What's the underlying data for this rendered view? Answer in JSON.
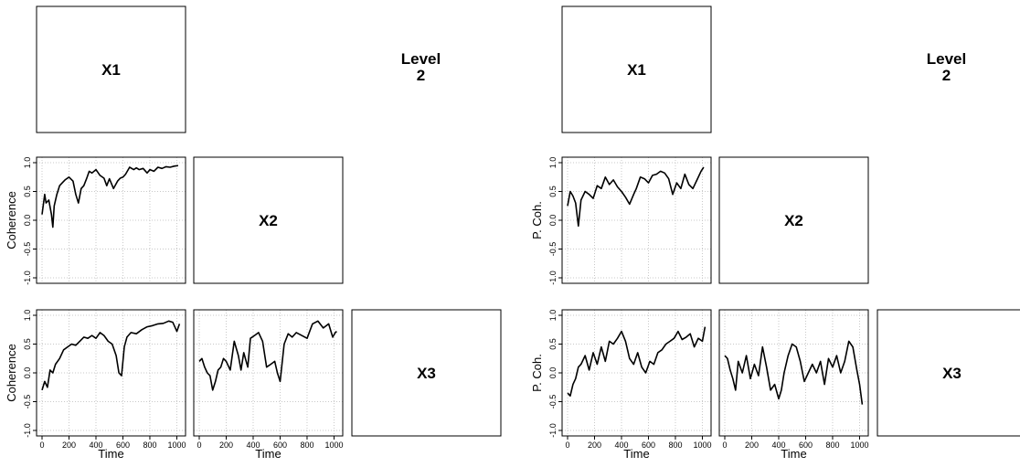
{
  "chart_data": [
    {
      "panel": "left",
      "type": "line",
      "diag_labels": [
        "X1",
        "X2",
        "X3"
      ],
      "level_label": [
        "Level",
        "2"
      ],
      "ylabel": "Coherence",
      "xlabel": "Time",
      "xlim": [
        0,
        1024
      ],
      "ylim": [
        -1,
        1
      ],
      "xticks": [
        "0",
        "200",
        "400",
        "600",
        "800",
        "1000"
      ],
      "yticks": [
        "-1.0",
        "-0.5",
        "0.0",
        "0.5",
        "1.0"
      ],
      "grid": true,
      "plots": [
        {
          "cell": "X2-X1",
          "x": [
            0,
            20,
            30,
            50,
            70,
            80,
            90,
            110,
            130,
            150,
            170,
            200,
            230,
            250,
            270,
            290,
            310,
            330,
            350,
            370,
            400,
            430,
            460,
            480,
            500,
            530,
            560,
            580,
            600,
            620,
            650,
            680,
            700,
            720,
            750,
            780,
            800,
            830,
            860,
            890,
            920,
            950,
            980,
            1010
          ],
          "y": [
            0.1,
            0.45,
            0.3,
            0.35,
            0.1,
            -0.12,
            0.25,
            0.45,
            0.6,
            0.65,
            0.7,
            0.75,
            0.68,
            0.45,
            0.3,
            0.55,
            0.6,
            0.72,
            0.85,
            0.82,
            0.88,
            0.78,
            0.73,
            0.6,
            0.72,
            0.55,
            0.68,
            0.73,
            0.75,
            0.8,
            0.92,
            0.88,
            0.91,
            0.88,
            0.9,
            0.82,
            0.88,
            0.85,
            0.92,
            0.9,
            0.93,
            0.92,
            0.94,
            0.95
          ]
        },
        {
          "cell": "X3-X1",
          "x": [
            0,
            20,
            40,
            60,
            80,
            100,
            130,
            160,
            190,
            220,
            250,
            280,
            310,
            340,
            370,
            400,
            430,
            460,
            490,
            520,
            550,
            570,
            590,
            610,
            630,
            660,
            700,
            740,
            780,
            820,
            860,
            900,
            940,
            970,
            1000,
            1020
          ],
          "y": [
            -0.3,
            -0.15,
            -0.25,
            0.05,
            0.0,
            0.15,
            0.25,
            0.4,
            0.45,
            0.5,
            0.48,
            0.55,
            0.62,
            0.6,
            0.65,
            0.6,
            0.7,
            0.65,
            0.55,
            0.5,
            0.3,
            0.0,
            -0.05,
            0.45,
            0.62,
            0.7,
            0.68,
            0.75,
            0.8,
            0.82,
            0.85,
            0.86,
            0.9,
            0.88,
            0.72,
            0.85
          ]
        },
        {
          "cell": "X3-X2",
          "x": [
            0,
            20,
            40,
            60,
            80,
            100,
            120,
            140,
            160,
            180,
            200,
            230,
            260,
            290,
            310,
            330,
            360,
            380,
            410,
            440,
            470,
            500,
            530,
            560,
            580,
            600,
            630,
            660,
            690,
            720,
            760,
            800,
            840,
            880,
            920,
            960,
            990,
            1010,
            1020
          ],
          "y": [
            0.2,
            0.25,
            0.1,
            0.0,
            -0.05,
            -0.3,
            -0.15,
            0.05,
            0.1,
            0.25,
            0.2,
            0.05,
            0.55,
            0.3,
            0.05,
            0.35,
            0.1,
            0.6,
            0.65,
            0.7,
            0.55,
            0.1,
            0.15,
            0.2,
            0.0,
            -0.15,
            0.5,
            0.68,
            0.62,
            0.7,
            0.65,
            0.6,
            0.85,
            0.9,
            0.78,
            0.85,
            0.62,
            0.7,
            0.72
          ]
        }
      ]
    },
    {
      "panel": "right",
      "type": "line",
      "diag_labels": [
        "X1",
        "X2",
        "X3"
      ],
      "level_label": [
        "Level",
        "2"
      ],
      "ylabel": "P. Coh.",
      "xlabel": "Time",
      "xlim": [
        0,
        1024
      ],
      "ylim": [
        -1,
        1
      ],
      "xticks": [
        "0",
        "200",
        "400",
        "600",
        "800",
        "1000"
      ],
      "yticks": [
        "-1.0",
        "-0.5",
        "0.0",
        "0.5",
        "1.0"
      ],
      "grid": true,
      "plots": [
        {
          "cell": "X2-X1",
          "x": [
            0,
            20,
            40,
            60,
            80,
            100,
            130,
            160,
            190,
            220,
            250,
            280,
            310,
            340,
            370,
            400,
            430,
            460,
            490,
            510,
            540,
            570,
            600,
            630,
            660,
            690,
            720,
            750,
            780,
            810,
            840,
            870,
            900,
            930,
            960,
            990,
            1010
          ],
          "y": [
            0.25,
            0.5,
            0.42,
            0.3,
            -0.1,
            0.35,
            0.5,
            0.45,
            0.38,
            0.6,
            0.55,
            0.75,
            0.62,
            0.7,
            0.58,
            0.5,
            0.4,
            0.28,
            0.45,
            0.55,
            0.75,
            0.72,
            0.65,
            0.78,
            0.8,
            0.85,
            0.82,
            0.72,
            0.45,
            0.65,
            0.55,
            0.8,
            0.62,
            0.55,
            0.7,
            0.85,
            0.92
          ]
        },
        {
          "cell": "X3-X1",
          "x": [
            0,
            20,
            40,
            60,
            80,
            100,
            130,
            160,
            190,
            220,
            250,
            280,
            310,
            340,
            370,
            400,
            430,
            460,
            490,
            520,
            550,
            580,
            610,
            640,
            670,
            700,
            730,
            760,
            790,
            820,
            850,
            880,
            910,
            940,
            970,
            1000,
            1020
          ],
          "y": [
            -0.35,
            -0.4,
            -0.2,
            -0.1,
            0.1,
            0.15,
            0.3,
            0.05,
            0.35,
            0.15,
            0.45,
            0.2,
            0.55,
            0.5,
            0.6,
            0.72,
            0.55,
            0.25,
            0.15,
            0.35,
            0.1,
            0.0,
            0.2,
            0.15,
            0.35,
            0.4,
            0.5,
            0.55,
            0.6,
            0.72,
            0.58,
            0.62,
            0.68,
            0.45,
            0.6,
            0.55,
            0.8
          ]
        },
        {
          "cell": "X3-X2",
          "x": [
            0,
            20,
            40,
            60,
            80,
            100,
            130,
            160,
            190,
            220,
            250,
            280,
            310,
            340,
            370,
            400,
            420,
            440,
            470,
            500,
            530,
            560,
            590,
            620,
            650,
            680,
            710,
            740,
            770,
            800,
            830,
            860,
            890,
            920,
            950,
            980,
            1000,
            1020
          ],
          "y": [
            0.3,
            0.25,
            0.05,
            -0.1,
            -0.3,
            0.2,
            0.0,
            0.3,
            -0.1,
            0.15,
            -0.05,
            0.45,
            0.1,
            -0.3,
            -0.2,
            -0.45,
            -0.3,
            0.0,
            0.3,
            0.5,
            0.45,
            0.2,
            -0.15,
            0.0,
            0.15,
            0.0,
            0.2,
            -0.2,
            0.25,
            0.1,
            0.3,
            0.0,
            0.2,
            0.55,
            0.45,
            0.05,
            -0.2,
            -0.55
          ]
        }
      ]
    }
  ]
}
